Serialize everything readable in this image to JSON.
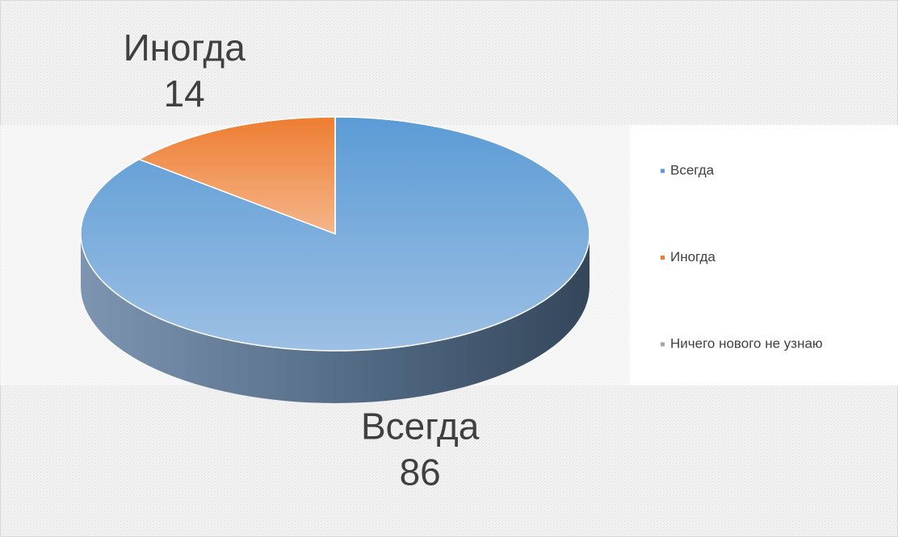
{
  "chart_data": {
    "type": "pie3d",
    "categories": [
      "Всегда",
      "Иногда",
      "Ничего нового не узнаю"
    ],
    "values": [
      86,
      14,
      0
    ],
    "colors": [
      "#5b9bd5",
      "#ed7d31",
      "#a5a5a5"
    ],
    "legend": "right"
  }
}
